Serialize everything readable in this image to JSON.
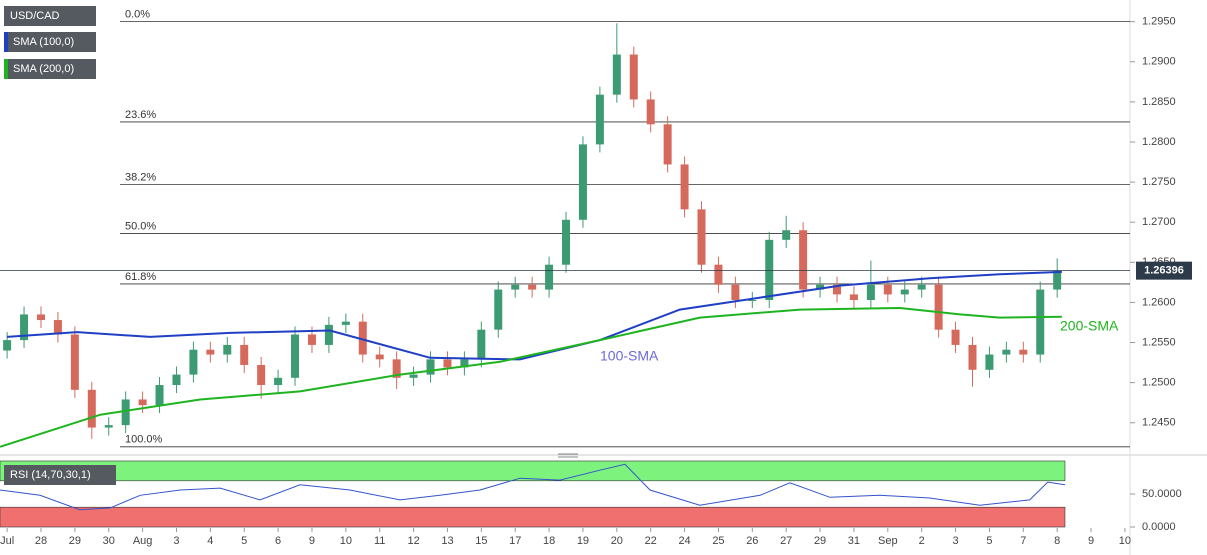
{
  "chart_data": [
    {
      "type": "candlestick",
      "title": "USD/CAD",
      "xlim": [
        -0.21,
        33.15
      ],
      "ylim": [
        1.2416,
        1.2977
      ],
      "xticks": [
        {
          "value": 0,
          "label": "Jul"
        },
        {
          "value": 1,
          "label": "28"
        },
        {
          "value": 2,
          "label": "29"
        },
        {
          "value": 3,
          "label": "30"
        },
        {
          "value": 4,
          "label": "Aug"
        },
        {
          "value": 5,
          "label": "3"
        },
        {
          "value": 6,
          "label": "4"
        },
        {
          "value": 7,
          "label": "5"
        },
        {
          "value": 8,
          "label": "6"
        },
        {
          "value": 9,
          "label": "9"
        },
        {
          "value": 10,
          "label": "10"
        },
        {
          "value": 11,
          "label": "11"
        },
        {
          "value": 12,
          "label": "12"
        },
        {
          "value": 13,
          "label": "13"
        },
        {
          "value": 14,
          "label": "15"
        },
        {
          "value": 15,
          "label": "17"
        },
        {
          "value": 16,
          "label": "18"
        },
        {
          "value": 17,
          "label": "19"
        },
        {
          "value": 18,
          "label": "20"
        },
        {
          "value": 19,
          "label": "22"
        },
        {
          "value": 20,
          "label": "24"
        },
        {
          "value": 21,
          "label": "25"
        },
        {
          "value": 22,
          "label": "26"
        },
        {
          "value": 23,
          "label": "27"
        },
        {
          "value": 24,
          "label": "29"
        },
        {
          "value": 25,
          "label": "31"
        },
        {
          "value": 26,
          "label": "Sep"
        },
        {
          "value": 27,
          "label": "2"
        },
        {
          "value": 28,
          "label": "3"
        },
        {
          "value": 29,
          "label": "5"
        },
        {
          "value": 30,
          "label": "7"
        },
        {
          "value": 31,
          "label": "8"
        },
        {
          "value": 32,
          "label": "9"
        },
        {
          "value": 33,
          "label": "10"
        }
      ],
      "yticks": [
        {
          "value": 1.245,
          "label": "1.2450"
        },
        {
          "value": 1.25,
          "label": "1.2500"
        },
        {
          "value": 1.255,
          "label": "1.2550"
        },
        {
          "value": 1.26,
          "label": "1.2600"
        },
        {
          "value": 1.265,
          "label": "1.2650"
        },
        {
          "value": 1.27,
          "label": "1.2700"
        },
        {
          "value": 1.275,
          "label": "1.2750"
        },
        {
          "value": 1.28,
          "label": "1.2800"
        },
        {
          "value": 1.285,
          "label": "1.2850"
        },
        {
          "value": 1.29,
          "label": "1.2900"
        },
        {
          "value": 1.295,
          "label": "1.2950"
        }
      ],
      "up_color": "#3d9b73",
      "down_color": "#d56a5c",
      "x": [
        0,
        0.5,
        1,
        1.5,
        2,
        2.5,
        3,
        3.5,
        4,
        4.5,
        5,
        5.5,
        6,
        6.5,
        7,
        7.5,
        8,
        8.5,
        9,
        9.5,
        10,
        10.5,
        11,
        11.5,
        12,
        12.5,
        13,
        13.5,
        14,
        14.5,
        15,
        15.5,
        16,
        16.5,
        17,
        17.5,
        18,
        18.5,
        19,
        19.5,
        20,
        20.5,
        21,
        21.5,
        22,
        22.5,
        23,
        23.5,
        24,
        24.5,
        25,
        25.5,
        26,
        26.5,
        27,
        27.5,
        28,
        28.5,
        29,
        29.5,
        30,
        30.5,
        31
      ],
      "open": [
        1.254,
        1.2553,
        1.2585,
        1.2578,
        1.256,
        1.2491,
        1.2444,
        1.2447,
        1.2479,
        1.2472,
        1.2497,
        1.251,
        1.2541,
        1.2535,
        1.2547,
        1.2522,
        1.2497,
        1.2506,
        1.256,
        1.2547,
        1.2572,
        1.2576,
        1.2535,
        1.2529,
        1.2506,
        1.251,
        1.2529,
        1.2519,
        1.2529,
        1.2566,
        1.2616,
        1.2622,
        1.2616,
        1.2647,
        1.2703,
        1.2797,
        1.2859,
        1.2909,
        1.2853,
        1.2822,
        1.2772,
        1.2716,
        1.2647,
        1.2622,
        1.2603,
        1.2603,
        1.2678,
        1.269,
        1.2616,
        1.2622,
        1.261,
        1.2603,
        1.2622,
        1.261,
        1.2616,
        1.2622,
        1.2566,
        1.2547,
        1.2516,
        1.2535,
        1.2541,
        1.2535,
        1.2616
      ],
      "high": [
        1.2563,
        1.2595,
        1.2595,
        1.2588,
        1.257,
        1.2501,
        1.2457,
        1.2489,
        1.2489,
        1.2507,
        1.252,
        1.2551,
        1.2551,
        1.2557,
        1.2557,
        1.2532,
        1.2516,
        1.257,
        1.257,
        1.2582,
        1.2586,
        1.2586,
        1.2545,
        1.2539,
        1.252,
        1.2539,
        1.2539,
        1.2539,
        1.2576,
        1.2626,
        1.2632,
        1.2632,
        1.2657,
        1.2713,
        1.2807,
        1.2869,
        1.2948,
        1.2919,
        1.2863,
        1.2832,
        1.2782,
        1.2726,
        1.2657,
        1.2632,
        1.2613,
        1.2688,
        1.2708,
        1.27,
        1.2632,
        1.2632,
        1.262,
        1.2652,
        1.2632,
        1.2626,
        1.2632,
        1.2632,
        1.2576,
        1.2557,
        1.2545,
        1.2551,
        1.2551,
        1.2626,
        1.2655
      ],
      "low": [
        1.253,
        1.2543,
        1.2568,
        1.255,
        1.2481,
        1.243,
        1.2434,
        1.2437,
        1.2462,
        1.2462,
        1.2487,
        1.25,
        1.2525,
        1.2525,
        1.2512,
        1.248,
        1.2487,
        1.2496,
        1.2537,
        1.2537,
        1.2562,
        1.2525,
        1.2519,
        1.2492,
        1.2496,
        1.25,
        1.2509,
        1.2509,
        1.2519,
        1.2556,
        1.2606,
        1.2606,
        1.2606,
        1.2637,
        1.2693,
        1.2787,
        1.2849,
        1.2843,
        1.2812,
        1.2762,
        1.2706,
        1.2637,
        1.2612,
        1.2593,
        1.2593,
        1.2593,
        1.2668,
        1.2606,
        1.2606,
        1.26,
        1.2593,
        1.2593,
        1.26,
        1.26,
        1.2606,
        1.2556,
        1.2537,
        1.2495,
        1.2506,
        1.2525,
        1.2525,
        1.2525,
        1.2606
      ],
      "close": [
        1.2553,
        1.2585,
        1.2578,
        1.256,
        1.2491,
        1.2444,
        1.2447,
        1.2479,
        1.2472,
        1.2497,
        1.251,
        1.2541,
        1.2535,
        1.2547,
        1.2522,
        1.2497,
        1.2506,
        1.256,
        1.2547,
        1.2572,
        1.2576,
        1.2535,
        1.2529,
        1.2506,
        1.251,
        1.2529,
        1.2519,
        1.2529,
        1.2566,
        1.2616,
        1.2622,
        1.2616,
        1.2647,
        1.2703,
        1.2797,
        1.2859,
        1.2909,
        1.2853,
        1.2822,
        1.2772,
        1.2716,
        1.2647,
        1.2622,
        1.2603,
        1.2603,
        1.2678,
        1.269,
        1.2616,
        1.2622,
        1.261,
        1.2603,
        1.2622,
        1.261,
        1.2616,
        1.2622,
        1.2566,
        1.2547,
        1.2516,
        1.2535,
        1.2541,
        1.2535,
        1.2616,
        1.264
      ],
      "series": [
        {
          "name": "SMA (100,0)",
          "color": "#1f3fc4",
          "x": [
            0,
            2.07,
            4.22,
            6.58,
            9.53,
            12.49,
            15.14,
            17.5,
            19.86,
            22.23,
            24.59,
            27.24,
            29.31,
            31.14
          ],
          "values": [
            1.2557,
            1.2563,
            1.2557,
            1.2562,
            1.2565,
            1.2531,
            1.2529,
            1.2553,
            1.2591,
            1.2606,
            1.2621,
            1.263,
            1.2635,
            1.2638
          ]
        },
        {
          "name": "SMA (200,0)",
          "color": "#1fb41f",
          "x": [
            -0.21,
            2.75,
            5.7,
            8.65,
            11.6,
            14.55,
            17.5,
            20.45,
            23.41,
            26.36,
            28.13,
            29.31,
            31.14
          ],
          "values": [
            1.242,
            1.246,
            1.2479,
            1.2489,
            1.251,
            1.2526,
            1.2553,
            1.2581,
            1.2591,
            1.2593,
            1.2585,
            1.2581,
            1.2582
          ]
        }
      ],
      "annotations": [
        "100-SMA",
        "200-SMA"
      ],
      "fib_levels": [
        {
          "label": "0.0%",
          "value": 1.295
        },
        {
          "label": "23.6%",
          "value": 1.2825
        },
        {
          "label": "38.2%",
          "value": 1.2747
        },
        {
          "label": "50.0%",
          "value": 1.2686
        },
        {
          "label": "61.8%",
          "value": 1.2623
        },
        {
          "label": "100.0%",
          "value": 1.242
        }
      ],
      "last_price": 1.26396
    },
    {
      "type": "line",
      "title": "RSI (14,70,30,1)",
      "color": "#3355cc",
      "ylim": [
        0,
        100
      ],
      "yticks": [
        {
          "value": 0,
          "label": "0.0000"
        },
        {
          "value": 50,
          "label": "50.0000"
        }
      ],
      "upper_band": 70,
      "lower_band": 30,
      "x": [
        -0.21,
        0.97,
        2.15,
        3.04,
        3.93,
        5.11,
        6.29,
        7.47,
        8.65,
        10.12,
        11.6,
        12.78,
        13.96,
        15.14,
        16.32,
        17.5,
        18.24,
        18.98,
        20.45,
        22.23,
        23.11,
        24.29,
        25.77,
        27.24,
        28.72,
        30.19,
        30.72,
        31.23
      ],
      "values": [
        56,
        48,
        26,
        29,
        48,
        56,
        59,
        41,
        64,
        56,
        41,
        48,
        56,
        74,
        71,
        86,
        95,
        56,
        33,
        48,
        67,
        45,
        48,
        44,
        33,
        41,
        68,
        64
      ]
    }
  ]
}
